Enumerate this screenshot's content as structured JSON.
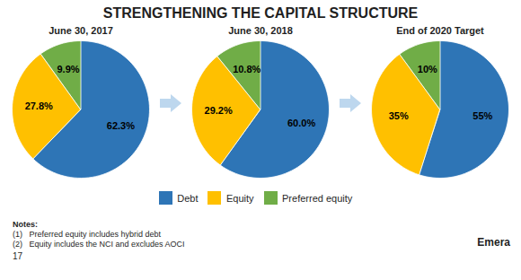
{
  "title": "STRENGTHENING THE CAPITAL STRUCTURE",
  "annotations": [
    "Notes:",
    "(1)   Preferred equity includes hybrid debt",
    "(2)   Equity includes the NCI and excludes AOCI",
    "17",
    "Emera"
  ],
  "chart_data": [
    {
      "type": "pie",
      "title": "June 30, 2017",
      "categories": [
        "Debt",
        "Equity",
        "Preferred equity"
      ],
      "values": [
        62.3,
        27.8,
        9.9
      ],
      "value_labels": [
        "62.3%",
        "27.8%",
        "9.9%"
      ],
      "colors": [
        "#2E75B6",
        "#FFC000",
        "#70AD47"
      ],
      "data_labels": true,
      "legend": "bottom"
    },
    {
      "type": "pie",
      "title": "June 30, 2018",
      "categories": [
        "Debt",
        "Equity",
        "Preferred equity"
      ],
      "values": [
        60.0,
        29.2,
        10.8
      ],
      "value_labels": [
        "60.0%",
        "29.2%",
        "10.8%"
      ],
      "colors": [
        "#2E75B6",
        "#FFC000",
        "#70AD47"
      ],
      "data_labels": true,
      "legend": "bottom"
    },
    {
      "type": "pie",
      "title": "End of 2020 Target",
      "categories": [
        "Debt",
        "Equity",
        "Preferred equity"
      ],
      "values": [
        55,
        35,
        10
      ],
      "value_labels": [
        "55%",
        "35%",
        "10%"
      ],
      "colors": [
        "#2E75B6",
        "#FFC000",
        "#70AD47"
      ],
      "data_labels": true,
      "legend": "bottom"
    }
  ]
}
